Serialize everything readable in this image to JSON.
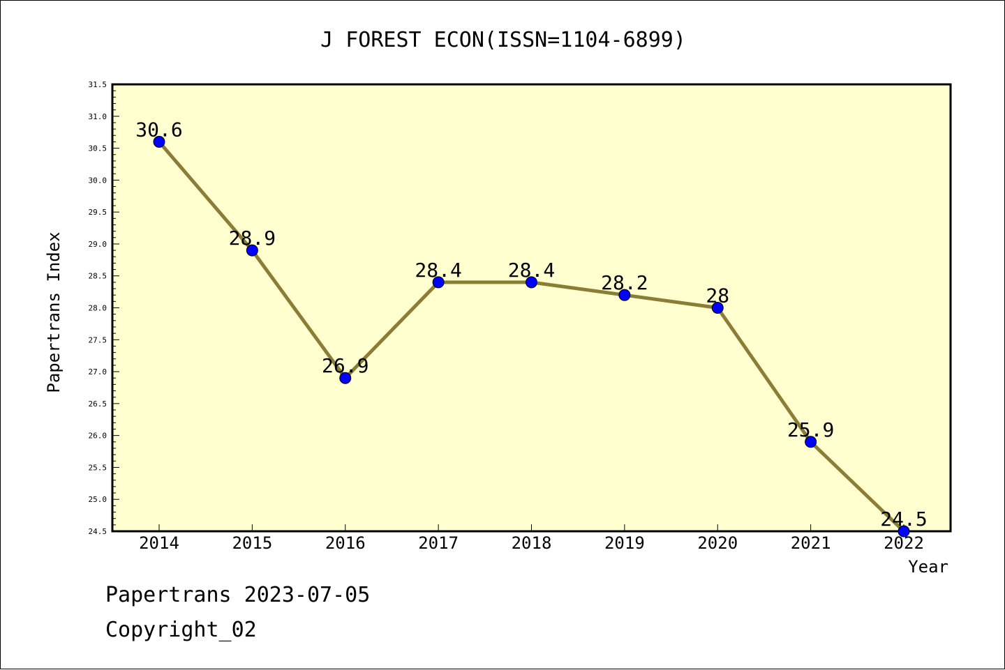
{
  "chart_data": {
    "type": "line",
    "title": "J FOREST ECON(ISSN=1104-6899)",
    "xlabel": "Year",
    "ylabel": "Papertrans Index",
    "categories": [
      "2014",
      "2015",
      "2016",
      "2017",
      "2018",
      "2019",
      "2020",
      "2021",
      "2022"
    ],
    "series": [
      {
        "values": [
          30.6,
          28.9,
          26.9,
          28.4,
          28.4,
          28.2,
          28.0,
          25.9,
          24.5
        ],
        "labels": [
          "30.6",
          "28.9",
          "26.9",
          "28.4",
          "28.4",
          "28.2",
          "28",
          "25.9",
          "24.5"
        ]
      }
    ],
    "ylim": [
      24.5,
      31.5
    ],
    "ytick_step": 0.5,
    "yminor_step": 0.1,
    "grid": false,
    "colors": {
      "plot_background": "#ffffd0",
      "line": "#8b7d35",
      "marker": "#0000ff"
    }
  },
  "footer": {
    "date_line": "Papertrans 2023-07-05",
    "copyright_line": "Copyright_02"
  }
}
